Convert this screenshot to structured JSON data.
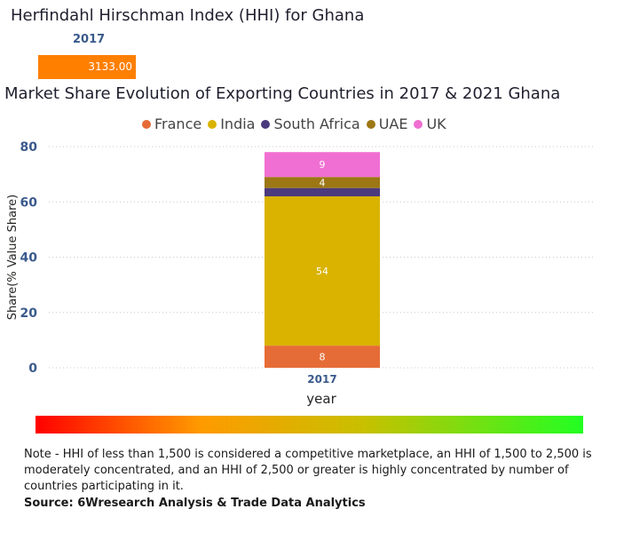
{
  "hhi": {
    "title": "Herfindahl Hirschman Index (HHI) for Ghana",
    "year": "2017",
    "value": 3133.0,
    "value_label": "3133.00",
    "bar_color": "#ff7f00"
  },
  "chart_data": {
    "type": "bar",
    "stacked": true,
    "title": "Market Share Evolution of Exporting Countries in 2017 & 2021 Ghana",
    "xlabel": "year",
    "ylabel": "Share(% Value Share)",
    "categories": [
      "2017"
    ],
    "ylim": [
      0,
      80
    ],
    "yticks": [
      0,
      20,
      40,
      60,
      80
    ],
    "grid": true,
    "legend_position": "top",
    "series": [
      {
        "name": "France",
        "color": "#e66c37",
        "values": [
          8
        ],
        "label": "8"
      },
      {
        "name": "India",
        "color": "#d9b300",
        "values": [
          54
        ],
        "label": "54"
      },
      {
        "name": "South Africa",
        "color": "#4b3a7e",
        "values": [
          3
        ],
        "label": ""
      },
      {
        "name": "UAE",
        "color": "#9c7714",
        "values": [
          4
        ],
        "label": "4"
      },
      {
        "name": "UK",
        "color": "#f06fd2",
        "values": [
          9
        ],
        "label": "9"
      }
    ]
  },
  "scale": {
    "left_color": "#ff0000",
    "right_color": "#22ff22"
  },
  "note": "Note - HHI of less than 1,500 is considered a competitive marketplace, an HHI of 1,500 to 2,500 is moderately concentrated, and an HHI of 2,500 or greater is highly concentrated by number of countries participating in it.",
  "source": "Source: 6Wresearch Analysis & Trade Data Analytics"
}
